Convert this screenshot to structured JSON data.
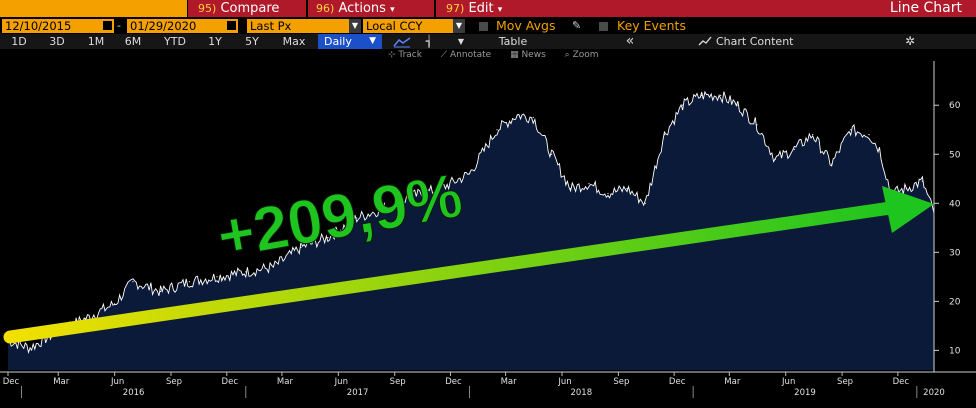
{
  "toolbar1": {
    "compare": {
      "num": "95)",
      "label": "Compare"
    },
    "actions": {
      "num": "96)",
      "label": "Actions",
      "arrow": "▾"
    },
    "edit": {
      "num": "97)",
      "label": "Edit",
      "arrow": "▾"
    },
    "title": "Line Chart"
  },
  "toolbar2": {
    "start_date": "12/10/2015",
    "end_date": "01/29/2020",
    "sep": "-",
    "field": "Last Px",
    "currency": "Local CCY",
    "mov_avgs": "Mov Avgs",
    "key_events": "Key Events"
  },
  "toolbar3": {
    "periods": [
      "1D",
      "3D",
      "1M",
      "6M",
      "YTD",
      "1Y",
      "5Y",
      "Max"
    ],
    "frequency": "Daily",
    "table": "Table",
    "collapse": "«",
    "chart_content": "Chart Content"
  },
  "tools": {
    "track": "Track",
    "annotate": "Annotate",
    "news": "News",
    "zoom": "Zoom"
  },
  "annotation": {
    "text": "+209,9%"
  },
  "colors": {
    "line": "#ffffff",
    "area": "#0b1a38",
    "arrow_start": "#f2e000",
    "arrow_end": "#1fc51f",
    "toolbar_amber": "#f3a000",
    "toolbar_red": "#b0192a",
    "selected": "#1c50c8"
  },
  "chart_data": {
    "type": "area",
    "x_range": [
      "2015-12-10",
      "2020-01-29"
    ],
    "ylim": [
      6,
      68
    ],
    "yticks": [
      10,
      20,
      30,
      40,
      50,
      60
    ],
    "month_ticks": [
      "Dec",
      "Mar",
      "Jun",
      "Sep",
      "Dec",
      "Mar",
      "Jun",
      "Sep",
      "Dec",
      "Mar",
      "Jun",
      "Sep",
      "Dec",
      "Mar",
      "Jun",
      "Sep",
      "Dec"
    ],
    "year_labels": [
      "2016",
      "2017",
      "2018",
      "2019",
      "2020"
    ],
    "series": [
      {
        "x": [
          "2015-12-10",
          "2016-01-15",
          "2016-03-01",
          "2016-04-15",
          "2016-06-01",
          "2016-07-01",
          "2016-08-15",
          "2016-10-01",
          "2016-11-15",
          "2017-01-01",
          "2017-02-15",
          "2017-04-01",
          "2017-05-15",
          "2017-07-01",
          "2017-08-15",
          "2017-10-01",
          "2017-11-15",
          "2018-01-01",
          "2018-02-15",
          "2018-03-20",
          "2018-04-15",
          "2018-05-15",
          "2018-06-15",
          "2018-07-15",
          "2018-08-15",
          "2018-09-15",
          "2018-10-15",
          "2018-11-15",
          "2018-12-15",
          "2019-01-15",
          "2019-02-15",
          "2019-03-15",
          "2019-04-15",
          "2019-05-15",
          "2019-06-15",
          "2019-07-15",
          "2019-08-15",
          "2019-09-15",
          "2019-10-15",
          "2019-11-01",
          "2019-11-20",
          "2019-12-15",
          "2020-01-10",
          "2020-01-29"
        ],
        "y": [
          12,
          10.5,
          14,
          16.5,
          19.5,
          24,
          22,
          24,
          25,
          26,
          27,
          31,
          33,
          37,
          39,
          41.5,
          43,
          46,
          55,
          58,
          57.5,
          50,
          43,
          44,
          42,
          43,
          40,
          54,
          60,
          62,
          62,
          60,
          56,
          49,
          51,
          54,
          48,
          55,
          54,
          51,
          42,
          43,
          44.5,
          38
        ]
      }
    ]
  }
}
